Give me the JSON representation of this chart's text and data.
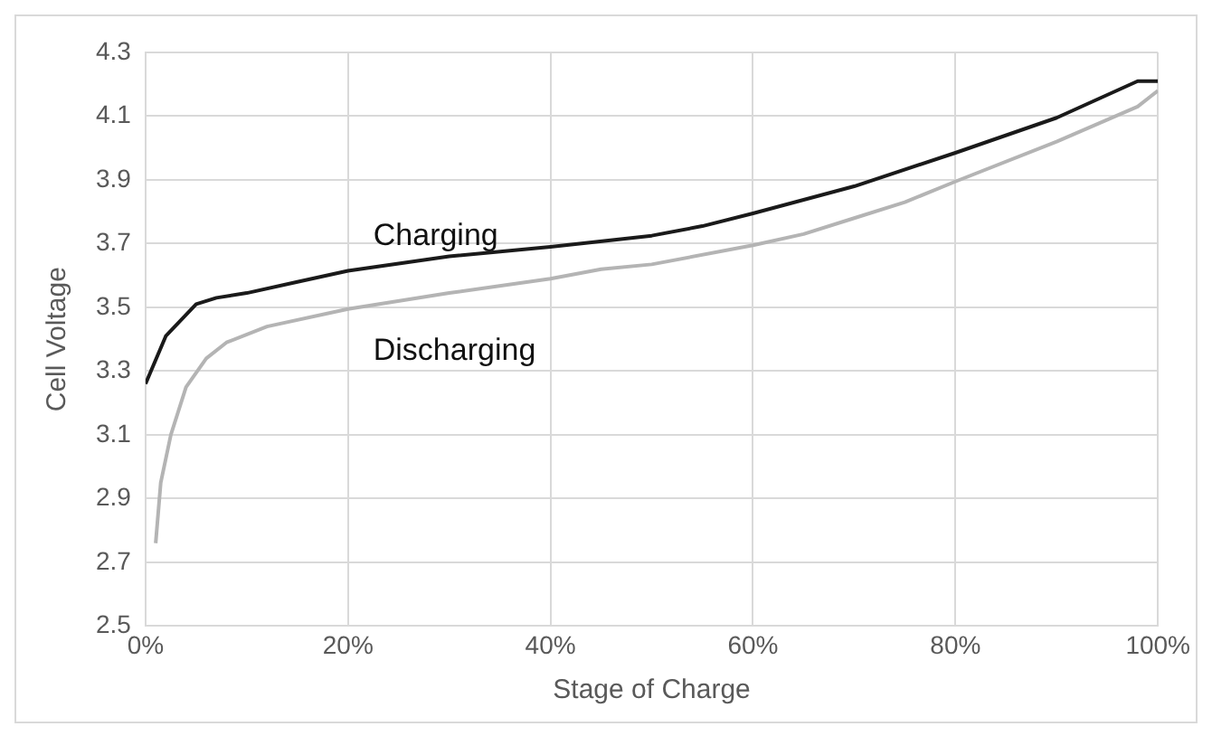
{
  "chart_data": {
    "type": "line",
    "xlabel": "Stage of Charge",
    "ylabel": "Cell Voltage",
    "xlim": [
      0,
      100
    ],
    "xticks": [
      {
        "value": 0,
        "label": "0%"
      },
      {
        "value": 20,
        "label": "20%"
      },
      {
        "value": 40,
        "label": "40%"
      },
      {
        "value": 60,
        "label": "60%"
      },
      {
        "value": 80,
        "label": "80%"
      },
      {
        "value": 100,
        "label": "100%"
      }
    ],
    "ylim": [
      2.5,
      4.3
    ],
    "yticks": [
      2.5,
      2.7,
      2.9,
      3.1,
      3.3,
      3.5,
      3.7,
      3.9,
      4.1,
      4.3
    ],
    "grid": true,
    "legend": false,
    "marker": "none",
    "line_style": "solid",
    "series": [
      {
        "name": "Charging",
        "color": "#1a1a1a",
        "x": [
          0,
          2,
          5,
          7,
          10,
          15,
          20,
          30,
          40,
          50,
          55,
          60,
          70,
          80,
          90,
          98,
          100
        ],
        "values": [
          3.26,
          3.41,
          3.51,
          3.53,
          3.545,
          3.58,
          3.615,
          3.66,
          3.69,
          3.725,
          3.755,
          3.795,
          3.88,
          3.985,
          4.095,
          4.21,
          4.21
        ]
      },
      {
        "name": "Discharging",
        "color": "#b4b4b4",
        "x": [
          1,
          1.5,
          2.5,
          4,
          6,
          8,
          12,
          20,
          30,
          40,
          45,
          50,
          60,
          65,
          70,
          75,
          80,
          90,
          98,
          100
        ],
        "values": [
          2.76,
          2.95,
          3.1,
          3.25,
          3.34,
          3.39,
          3.44,
          3.495,
          3.545,
          3.59,
          3.62,
          3.635,
          3.695,
          3.73,
          3.78,
          3.83,
          3.895,
          4.02,
          4.13,
          4.18
        ]
      }
    ]
  }
}
